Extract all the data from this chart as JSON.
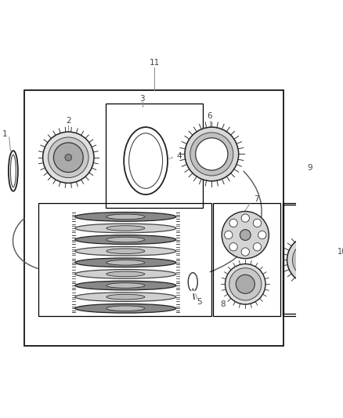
{
  "bg_color": "#ffffff",
  "lc": "#2a2a2a",
  "gray1": "#aaaaaa",
  "gray2": "#666666",
  "gray3": "#cccccc",
  "fig_width": 4.38,
  "fig_height": 5.33,
  "dpi": 100
}
